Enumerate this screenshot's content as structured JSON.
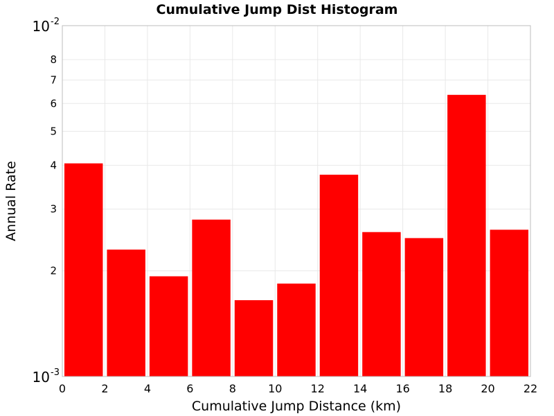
{
  "chart_data": {
    "type": "bar",
    "title": "Cumulative Jump Dist Histogram",
    "xlabel": "Cumulative Jump Distance (km)",
    "ylabel": "Annual Rate",
    "y_scale": "log",
    "ylim": [
      0.001,
      0.01
    ],
    "xlim": [
      0,
      22
    ],
    "grid": true,
    "bar_color": "#ff0000",
    "x_ticks": [
      "0",
      "2",
      "4",
      "6",
      "8",
      "10",
      "12",
      "14",
      "16",
      "18",
      "20",
      "22"
    ],
    "y_ticks_minor": [
      {
        "value": 0.002,
        "label": "2"
      },
      {
        "value": 0.003,
        "label": "3"
      },
      {
        "value": 0.004,
        "label": "4"
      },
      {
        "value": 0.005,
        "label": "5"
      },
      {
        "value": 0.006,
        "label": "6"
      },
      {
        "value": 0.007,
        "label": "7"
      },
      {
        "value": 0.008,
        "label": "8"
      }
    ],
    "y_ticks_major": [
      {
        "value": 0.001,
        "base": "10",
        "exp": "-3"
      },
      {
        "value": 0.01,
        "base": "10",
        "exp": "-2"
      }
    ],
    "bins": [
      {
        "x0": 0,
        "x1": 2,
        "value": 0.00405
      },
      {
        "x0": 2,
        "x1": 4,
        "value": 0.0023
      },
      {
        "x0": 4,
        "x1": 6,
        "value": 0.00193
      },
      {
        "x0": 6,
        "x1": 8,
        "value": 0.0028
      },
      {
        "x0": 8,
        "x1": 10,
        "value": 0.00165
      },
      {
        "x0": 10,
        "x1": 12,
        "value": 0.00184
      },
      {
        "x0": 12,
        "x1": 14,
        "value": 0.00376
      },
      {
        "x0": 14,
        "x1": 16,
        "value": 0.00258
      },
      {
        "x0": 16,
        "x1": 18,
        "value": 0.00248
      },
      {
        "x0": 18,
        "x1": 20,
        "value": 0.00635
      },
      {
        "x0": 20,
        "x1": 22,
        "value": 0.00262
      }
    ]
  }
}
